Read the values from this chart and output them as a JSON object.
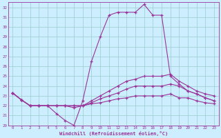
{
  "xlabel": "Windchill (Refroidissement éolien,°C)",
  "background_color": "#cceeff",
  "grid_color": "#99cccc",
  "line_color": "#993399",
  "xlim": [
    -0.5,
    23.5
  ],
  "ylim": [
    20,
    32.5
  ],
  "yticks": [
    20,
    21,
    22,
    23,
    24,
    25,
    26,
    27,
    28,
    29,
    30,
    31,
    32
  ],
  "xticks": [
    0,
    1,
    2,
    3,
    4,
    5,
    6,
    7,
    8,
    9,
    10,
    11,
    12,
    13,
    14,
    15,
    16,
    17,
    18,
    19,
    20,
    21,
    22,
    23
  ],
  "series": [
    [
      23.3,
      22.6,
      22.0,
      22.0,
      22.0,
      21.2,
      20.5,
      20.0,
      22.5,
      26.5,
      29.0,
      31.2,
      31.5,
      31.5,
      31.5,
      32.3,
      31.2,
      31.2,
      25.0,
      24.2,
      23.5,
      23.2,
      22.8,
      22.5
    ],
    [
      23.3,
      22.6,
      22.0,
      22.0,
      22.0,
      22.0,
      22.0,
      21.8,
      22.0,
      22.5,
      23.0,
      23.5,
      24.0,
      24.5,
      24.7,
      25.0,
      25.0,
      25.0,
      25.2,
      24.5,
      24.0,
      23.5,
      23.2,
      23.0
    ],
    [
      23.3,
      22.6,
      22.0,
      22.0,
      22.0,
      22.0,
      22.0,
      22.0,
      22.0,
      22.3,
      22.7,
      23.0,
      23.3,
      23.7,
      24.0,
      24.0,
      24.0,
      24.0,
      24.2,
      24.0,
      23.5,
      23.2,
      22.8,
      22.5
    ],
    [
      23.3,
      22.6,
      22.0,
      22.0,
      22.0,
      22.0,
      22.0,
      22.0,
      22.0,
      22.2,
      22.3,
      22.5,
      22.7,
      22.8,
      23.0,
      23.0,
      23.0,
      23.0,
      23.2,
      22.8,
      22.8,
      22.5,
      22.3,
      22.2
    ]
  ]
}
